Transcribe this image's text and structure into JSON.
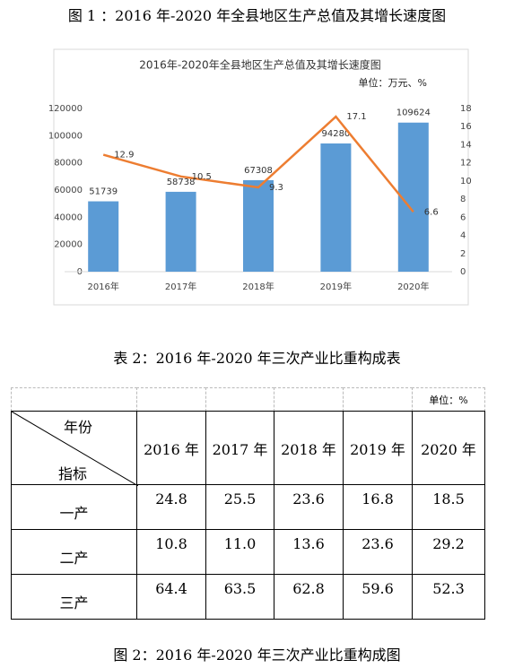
{
  "figure1_caption": "图 1 ：2016 年-2020 年全县地区生产总值及其增长速度图",
  "chart_data": {
    "type": "combo",
    "title": "2016年-2020年全县地区生产总值及其增长速度图",
    "unit_note": "单位：万元、%",
    "categories": [
      "2016年",
      "2017年",
      "2018年",
      "2019年",
      "2020年"
    ],
    "series": [
      {
        "type": "bar",
        "color": "#5b9bd5",
        "values": [
          51739,
          58738,
          67308,
          94280,
          109624
        ]
      },
      {
        "type": "line",
        "axis": "y2",
        "color": "#ed7d31",
        "values": [
          12.9,
          10.5,
          9.3,
          17.1,
          6.6
        ]
      }
    ],
    "ylim": [
      0,
      120000
    ],
    "yticks": [
      0,
      20000,
      40000,
      60000,
      80000,
      100000,
      120000
    ],
    "y2lim": [
      0,
      18
    ],
    "y2ticks": [
      0,
      2,
      4,
      6,
      8,
      10,
      12,
      14,
      16,
      18
    ],
    "grid": false,
    "data_labels": true
  },
  "table_caption": "表 2：2016 年-2020 年三次产业比重构成表",
  "table": {
    "unit": "单位：%",
    "corner_top": "年份",
    "corner_bottom": "指标",
    "columns": [
      "2016 年",
      "2017 年",
      "2018 年",
      "2019 年",
      "2020 年"
    ],
    "rows": [
      [
        "一产",
        "24.8",
        "25.5",
        "23.6",
        "16.8",
        "18.5"
      ],
      [
        "二产",
        "10.8",
        "11.0",
        "13.6",
        "23.6",
        "29.2"
      ],
      [
        "三产",
        "64.4",
        "63.5",
        "62.8",
        "59.6",
        "52.3"
      ]
    ]
  },
  "figure2_caption": "图 2：2016 年-2020 年三次产业比重构成图"
}
